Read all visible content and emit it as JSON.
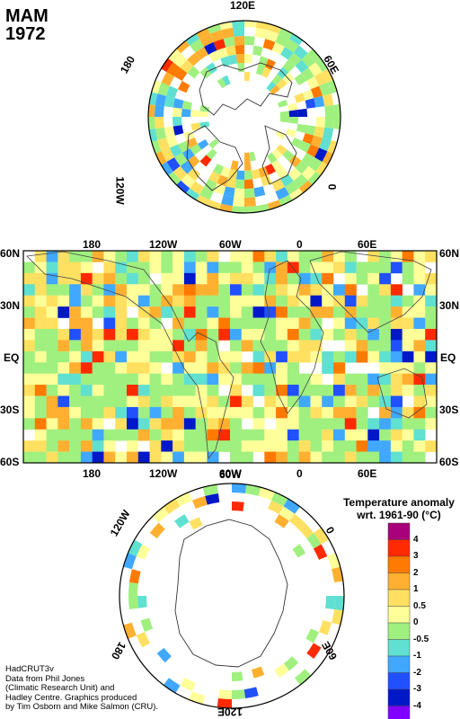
{
  "title": {
    "season": "MAM",
    "year": "1972"
  },
  "north_map": {
    "labels": [
      {
        "text": "120E",
        "rot": 0
      },
      {
        "text": "60E",
        "rot": 60
      },
      {
        "text": "0",
        "rot": 90
      },
      {
        "text": "180",
        "rot": -60
      },
      {
        "text": "120W",
        "rot": 90
      }
    ]
  },
  "world_map": {
    "top_labels": [
      "180",
      "120W",
      "60W",
      "0",
      "60E"
    ],
    "bottom_labels": [
      "180",
      "120W",
      "60W",
      "0",
      "60E"
    ],
    "left_labels": [
      "60N",
      "30N",
      "EQ",
      "30S",
      "60S"
    ],
    "right_labels": [
      "60N",
      "30N",
      "EQ",
      "30S",
      "60S"
    ]
  },
  "south_map": {
    "labels": [
      {
        "text": "60W",
        "rot": 0
      },
      {
        "text": "120W",
        "rot": -60
      },
      {
        "text": "0",
        "rot": 60
      },
      {
        "text": "180",
        "rot": 120
      },
      {
        "text": "60E",
        "rot": -120
      },
      {
        "text": "120E",
        "rot": 180
      }
    ]
  },
  "legend": {
    "title_line1": "Temperature anomaly",
    "title_line2": "wrt. 1961-90  (°C)",
    "ticks": [
      "4",
      "3",
      "2",
      "1",
      "0.5",
      "0",
      "-0.5",
      "-1",
      "-2",
      "-3",
      "-4"
    ],
    "colors": [
      "#a8007a",
      "#ff2a00",
      "#ff7a00",
      "#ffb030",
      "#ffe060",
      "#ffff99",
      "#a0f080",
      "#60e0d0",
      "#40a8ff",
      "#2050ff",
      "#0018c8",
      "#8000ff"
    ]
  },
  "credit": [
    "HadCRUT3v",
    "Data from Phil Jones",
    "(Climatic Research Unit) and",
    "Hadley Centre.  Graphics produced",
    "by Tim Osborn and Mike Salmon (CRU)."
  ]
}
